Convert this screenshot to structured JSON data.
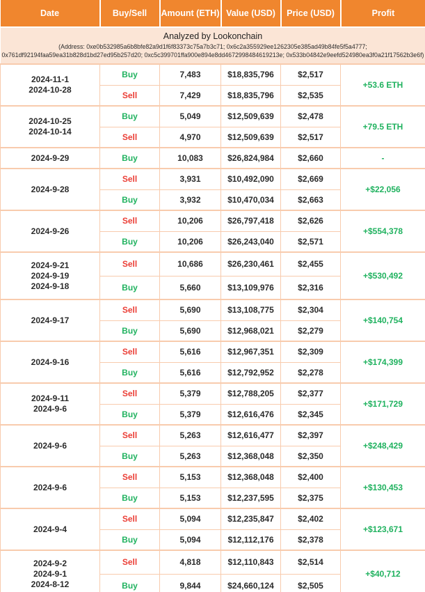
{
  "banner": {
    "title": "Analyzed by Lookonchain",
    "address_line1": "(Address: 0xe0b532985a6b8bfe82a9d1f6f83373c75a7b3c71; 0x6c2a355929ee1262305e385ad49b84fe5f5a4777;",
    "address_line2": "0x761df92194faa59ea31b828d1bd27ed95b257d20; 0xc5c399701ffa900e894e8dd4672998484619213e; 0x533b04842e9eefd524980ea3f0a21f17562b3e6f)"
  },
  "colors": {
    "header_bg": "#f0862e",
    "banner_bg": "#fbe5d6",
    "border": "#f8cbad",
    "buy_green": "#20b25f",
    "sell_red": "#eb3e36",
    "profit_green": "#20b25f",
    "header_text": "#ffffff",
    "body_text": "#2b2b2b"
  },
  "chart_data": {
    "type": "table",
    "title": "Analyzed by Lookonchain",
    "columns": [
      "Date",
      "Buy/Sell",
      "Amount (ETH)",
      "Value (USD)",
      "Price (USD)",
      "Profit"
    ],
    "groups": [
      {
        "dates": [
          "2024-11-1",
          "2024-10-28"
        ],
        "rows": [
          {
            "side": "Buy",
            "amount": "7,483",
            "value": "$18,835,796",
            "price": "$2,517"
          },
          {
            "side": "Sell",
            "amount": "7,429",
            "value": "$18,835,796",
            "price": "$2,535"
          }
        ],
        "profit": "+53.6 ETH"
      },
      {
        "dates": [
          "2024-10-25",
          "2024-10-14"
        ],
        "rows": [
          {
            "side": "Buy",
            "amount": "5,049",
            "value": "$12,509,639",
            "price": "$2,478"
          },
          {
            "side": "Sell",
            "amount": "4,970",
            "value": "$12,509,639",
            "price": "$2,517"
          }
        ],
        "profit": "+79.5 ETH"
      },
      {
        "dates": [
          "2024-9-29"
        ],
        "rows": [
          {
            "side": "Buy",
            "amount": "10,083",
            "value": "$26,824,984",
            "price": "$2,660"
          }
        ],
        "profit": "-"
      },
      {
        "dates": [
          "2024-9-28"
        ],
        "rows": [
          {
            "side": "Sell",
            "amount": "3,931",
            "value": "$10,492,090",
            "price": "$2,669"
          },
          {
            "side": "Buy",
            "amount": "3,932",
            "value": "$10,470,034",
            "price": "$2,663"
          }
        ],
        "profit": "+$22,056"
      },
      {
        "dates": [
          "2024-9-26"
        ],
        "rows": [
          {
            "side": "Sell",
            "amount": "10,206",
            "value": "$26,797,418",
            "price": "$2,626"
          },
          {
            "side": "Buy",
            "amount": "10,206",
            "value": "$26,243,040",
            "price": "$2,571"
          }
        ],
        "profit": "+$554,378"
      },
      {
        "dates": [
          "2024-9-21",
          "2024-9-19",
          "2024-9-18"
        ],
        "rows": [
          {
            "side": "Sell",
            "amount": "10,686",
            "value": "$26,230,461",
            "price": "$2,455"
          },
          {
            "side": "Buy",
            "amount": "5,660",
            "value": "$13,109,976",
            "price": "$2,316"
          }
        ],
        "profit": "+$530,492"
      },
      {
        "dates": [
          "2024-9-17"
        ],
        "rows": [
          {
            "side": "Sell",
            "amount": "5,690",
            "value": "$13,108,775",
            "price": "$2,304"
          },
          {
            "side": "Buy",
            "amount": "5,690",
            "value": "$12,968,021",
            "price": "$2,279"
          }
        ],
        "profit": "+$140,754"
      },
      {
        "dates": [
          "2024-9-16"
        ],
        "rows": [
          {
            "side": "Sell",
            "amount": "5,616",
            "value": "$12,967,351",
            "price": "$2,309"
          },
          {
            "side": "Buy",
            "amount": "5,616",
            "value": "$12,792,952",
            "price": "$2,278"
          }
        ],
        "profit": "+$174,399"
      },
      {
        "dates": [
          "2024-9-11",
          "2024-9-6"
        ],
        "rows": [
          {
            "side": "Sell",
            "amount": "5,379",
            "value": "$12,788,205",
            "price": "$2,377"
          },
          {
            "side": "Buy",
            "amount": "5,379",
            "value": "$12,616,476",
            "price": "$2,345"
          }
        ],
        "profit": "+$171,729"
      },
      {
        "dates": [
          "2024-9-6"
        ],
        "rows": [
          {
            "side": "Sell",
            "amount": "5,263",
            "value": "$12,616,477",
            "price": "$2,397"
          },
          {
            "side": "Buy",
            "amount": "5,263",
            "value": "$12,368,048",
            "price": "$2,350"
          }
        ],
        "profit": "+$248,429"
      },
      {
        "dates": [
          "2024-9-6"
        ],
        "rows": [
          {
            "side": "Sell",
            "amount": "5,153",
            "value": "$12,368,048",
            "price": "$2,400"
          },
          {
            "side": "Buy",
            "amount": "5,153",
            "value": "$12,237,595",
            "price": "$2,375"
          }
        ],
        "profit": "+$130,453"
      },
      {
        "dates": [
          "2024-9-4"
        ],
        "rows": [
          {
            "side": "Sell",
            "amount": "5,094",
            "value": "$12,235,847",
            "price": "$2,402"
          },
          {
            "side": "Buy",
            "amount": "5,094",
            "value": "$12,112,176",
            "price": "$2,378"
          }
        ],
        "profit": "+$123,671"
      },
      {
        "dates": [
          "2024-9-2",
          "2024-9-1",
          "2024-8-12"
        ],
        "rows": [
          {
            "side": "Sell",
            "amount": "4,818",
            "value": "$12,110,843",
            "price": "$2,514"
          },
          {
            "side": "Buy",
            "amount": "9,844",
            "value": "$24,660,124",
            "price": "$2,505"
          }
        ],
        "profit": "+$40,712"
      }
    ]
  }
}
